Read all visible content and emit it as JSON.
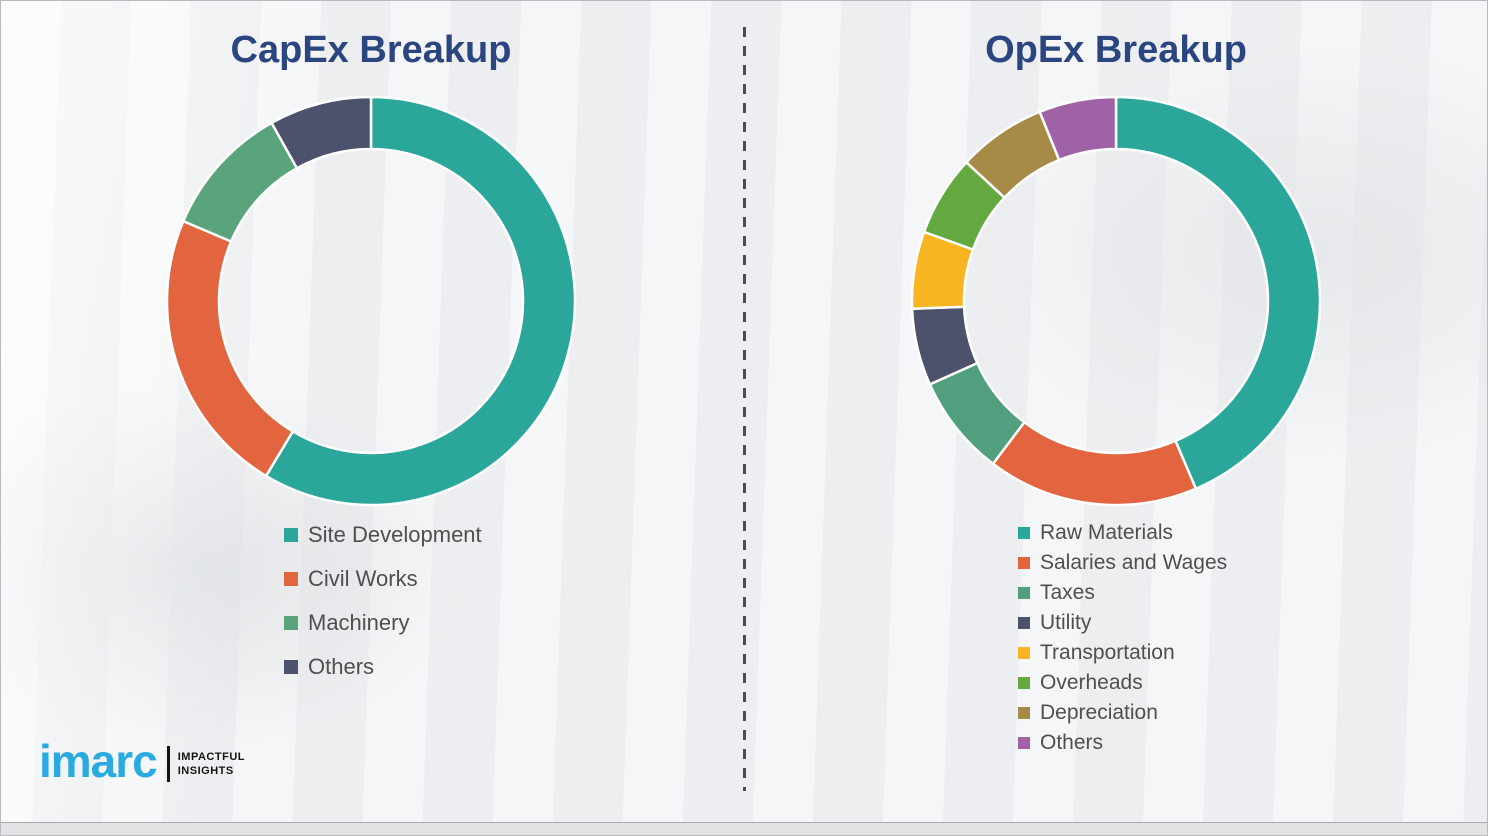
{
  "page": {
    "background_color": "#f0f1f3",
    "title_color": "#2a4580",
    "legend_text_color": "#4f4f4f"
  },
  "chart_data": [
    {
      "type": "donut",
      "title": "CapEx Breakup",
      "legend_position": "below-left",
      "segments": [
        {
          "label": "Site Development",
          "color": "#2ba69a",
          "percent": 58.6
        },
        {
          "label": "Civil Works",
          "color": "#e2653f",
          "percent": 22.8
        },
        {
          "label": "Machinery",
          "color": "#5aa47b",
          "percent": 10.5
        },
        {
          "label": "Others",
          "color": "#4c526b",
          "percent": 8.1
        }
      ]
    },
    {
      "type": "donut",
      "title": "OpEx Breakup",
      "legend_position": "below-left",
      "segments": [
        {
          "label": "Raw Materials",
          "color": "#2ba69a",
          "percent": 43.6
        },
        {
          "label": "Salaries and Wages",
          "color": "#e2653f",
          "percent": 16.7
        },
        {
          "label": "Taxes",
          "color": "#519f7f",
          "percent": 8.0
        },
        {
          "label": "Utility",
          "color": "#4c526b",
          "percent": 6.1
        },
        {
          "label": "Transportation",
          "color": "#f7b521",
          "percent": 6.1
        },
        {
          "label": "Overheads",
          "color": "#63a93f",
          "percent": 6.4
        },
        {
          "label": "Depreciation",
          "color": "#a68b46",
          "percent": 7.0
        },
        {
          "label": "Others",
          "color": "#9f62a6",
          "percent": 6.1
        }
      ]
    }
  ],
  "brand": {
    "name": "imarc",
    "tagline_line1": "IMPACTFUL",
    "tagline_line2": "INSIGHTS",
    "brand_blue": "#29abe2"
  }
}
